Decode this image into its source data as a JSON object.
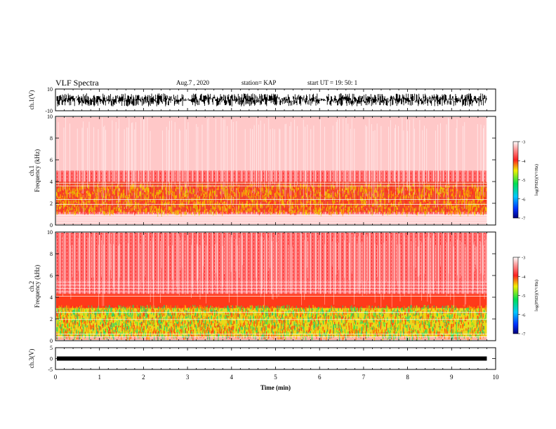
{
  "header": {
    "title": "VLF Spectra",
    "date": "Aug.7 , 2020",
    "station": "station= KAP",
    "start_ut": "start UT =   19: 50: 1"
  },
  "chart_data": [
    {
      "type": "line",
      "name": "ch1-waveform",
      "ylabel": "ch.1(V)",
      "ylim": [
        -10,
        10
      ],
      "yticks": [
        "10",
        "-10"
      ],
      "xlim": [
        0,
        10
      ]
    },
    {
      "type": "heatmap",
      "name": "ch1-spectrogram",
      "ylabel": "ch.1\nFrequency (kHz)",
      "ylabel_line1": "ch.1",
      "ylabel_line2": "Frequency (kHz)",
      "ylim": [
        0,
        10
      ],
      "yticks": [
        "0",
        "2",
        "4",
        "6",
        "8",
        "10"
      ],
      "xlim": [
        0,
        10
      ],
      "data_end_min": 9.8,
      "colorbar": {
        "label": "log(PSD)(V²/Hz)",
        "ticks": [
          "-3",
          "-4",
          "-5",
          "-6",
          "-7"
        ],
        "range": [
          -7,
          -3
        ]
      }
    },
    {
      "type": "heatmap",
      "name": "ch2-spectrogram",
      "ylabel_line1": "ch.2",
      "ylabel_line2": "Frequency (kHz)",
      "ylim": [
        0,
        10
      ],
      "yticks": [
        "0",
        "2",
        "4",
        "6",
        "8",
        "10"
      ],
      "xlim": [
        0,
        10
      ],
      "data_end_min": 9.8,
      "colorbar": {
        "label": "log(PSD)(V²/Hz)",
        "ticks": [
          "-3",
          "-4",
          "-5",
          "-6",
          "-7"
        ],
        "range": [
          -7,
          -3
        ]
      }
    },
    {
      "type": "line",
      "name": "ch3-waveform",
      "ylabel": "ch.3(V)",
      "ylim": [
        -5,
        5
      ],
      "yticks": [
        "5",
        "0",
        "-5"
      ],
      "xlim": [
        0,
        10
      ]
    }
  ],
  "x_axis": {
    "label": "Time (min)",
    "ticks": [
      "0",
      "1",
      "2",
      "3",
      "4",
      "5",
      "6",
      "7",
      "8",
      "9",
      "10"
    ]
  }
}
